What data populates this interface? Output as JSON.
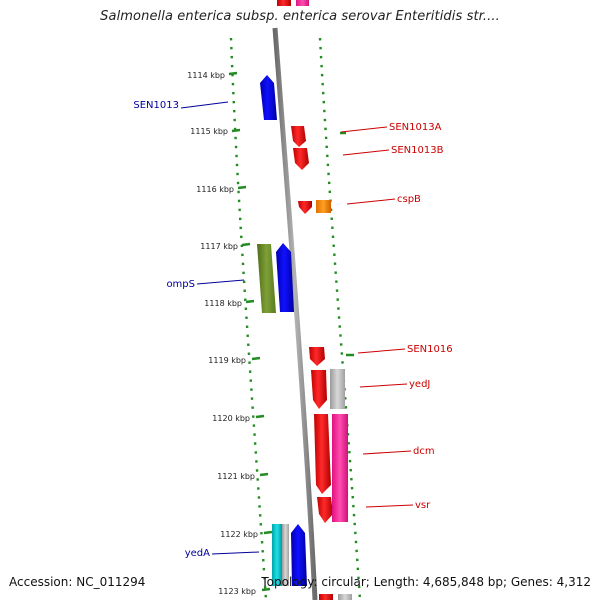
{
  "title": "Salmonella enterica subsp. enterica serovar Enteritidis str....",
  "ticks": [
    "1114 kbp",
    "1115 kbp",
    "1116 kbp",
    "1117 kbp",
    "1118 kbp",
    "1119 kbp",
    "1120 kbp",
    "1121 kbp",
    "1122 kbp",
    "1123 kbp"
  ],
  "genes": [
    {
      "label": "SEN1013",
      "strand": "reverse",
      "color": "#0000ff"
    },
    {
      "label": "SEN1013A",
      "strand": "forward",
      "color": "#ff0000"
    },
    {
      "label": "SEN1013B",
      "strand": "forward",
      "color": "#ff0000"
    },
    {
      "label": "cspB",
      "strand": "forward",
      "color": "#ff8c00"
    },
    {
      "label": "ompS",
      "strand": "reverse",
      "color": "#6b8e23"
    },
    {
      "label": "SEN1016",
      "strand": "forward",
      "color": "#ff0000"
    },
    {
      "label": "yedJ",
      "strand": "forward",
      "color": "#ff0000"
    },
    {
      "label": "dcm",
      "strand": "forward",
      "color": "#ff0000"
    },
    {
      "label": "vsr",
      "strand": "forward",
      "color": "#ff1493"
    },
    {
      "label": "yedA",
      "strand": "reverse",
      "color": "#00ced1"
    }
  ],
  "colors": {
    "forward_label": "#cc0000",
    "reverse_label": "#000099",
    "backbone": "#808080",
    "tick": "#228b22"
  },
  "footer": {
    "accession": "Accession: NC_011294",
    "topology": "Topology: circular; Length: 4,685,848 bp; Genes: 4,312"
  }
}
